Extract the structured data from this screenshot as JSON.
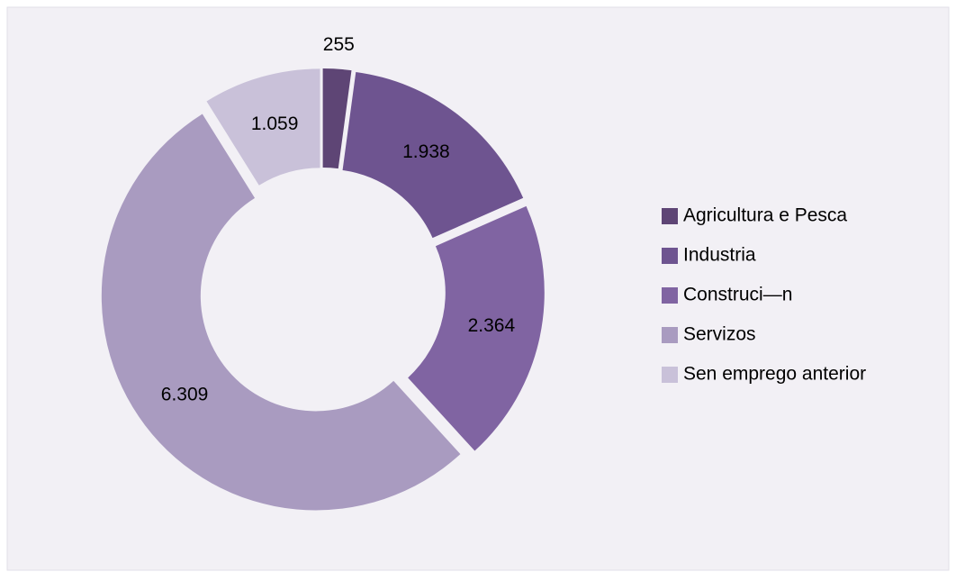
{
  "chart_data": {
    "type": "donut",
    "categories": [
      "Agricultura e Pesca",
      "Industria",
      "Construci—n",
      "Servizos",
      "Sen emprego anterior"
    ],
    "values": [
      255,
      1938,
      2364,
      6309,
      1059
    ],
    "value_labels": [
      "255",
      "1.938",
      "2.364",
      "6.309",
      "1.059"
    ],
    "colors": [
      "#5e4575",
      "#6e5490",
      "#8064a2",
      "#a99bc0",
      "#c9c1d9"
    ],
    "legend": "right"
  }
}
